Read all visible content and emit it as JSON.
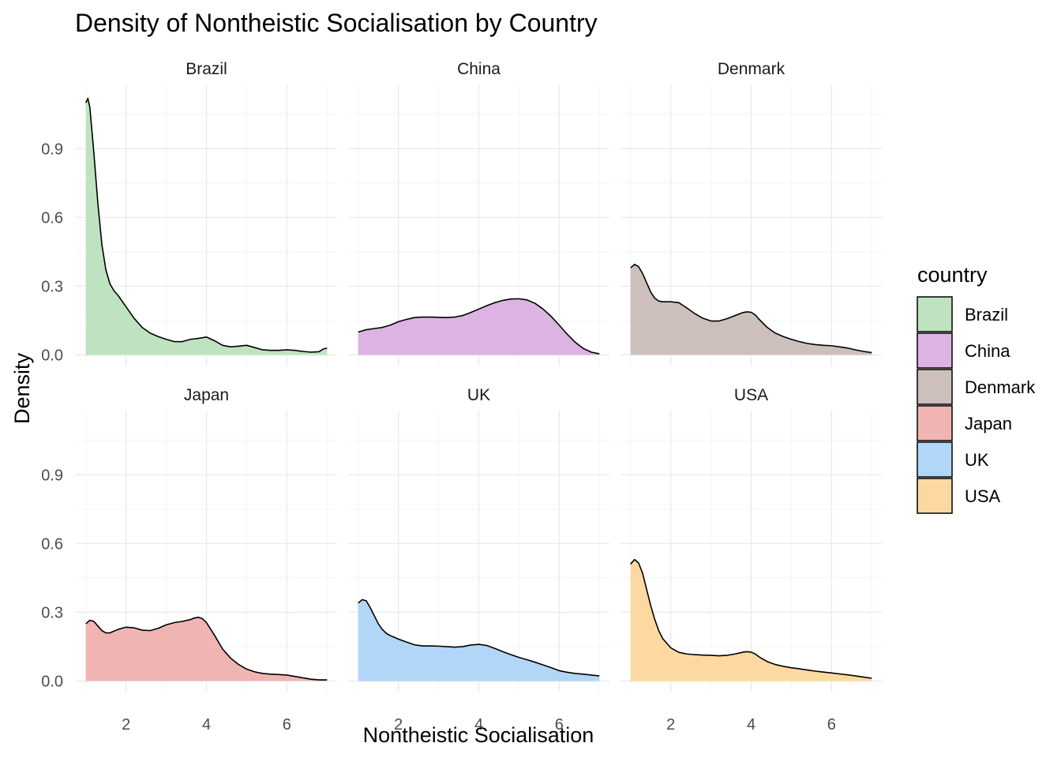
{
  "chart_data": {
    "type": "area",
    "title": "Density of Nontheistic Socialisation by Country",
    "xlabel": "Nontheistic Socialisation",
    "ylabel": "Density",
    "xlim": [
      0.75,
      7.25
    ],
    "ylim": [
      -0.05,
      1.18
    ],
    "x_ticks": [
      2,
      4,
      6
    ],
    "y_ticks": [
      0.0,
      0.3,
      0.6,
      0.9
    ],
    "y_tick_labels": [
      "0.0",
      "0.3",
      "0.6",
      "0.9"
    ],
    "grid": true,
    "facet_layout": "2 rows x 3 columns",
    "legend": {
      "title": "country",
      "position": "right"
    },
    "panels": [
      {
        "name": "Brazil",
        "color": "#bfe3c0",
        "x": [
          1.0,
          1.05,
          1.1,
          1.2,
          1.3,
          1.4,
          1.5,
          1.6,
          1.7,
          1.8,
          2.0,
          2.2,
          2.4,
          2.6,
          2.8,
          3.0,
          3.2,
          3.4,
          3.6,
          3.8,
          4.0,
          4.2,
          4.4,
          4.6,
          4.8,
          5.0,
          5.2,
          5.4,
          5.6,
          5.8,
          6.0,
          6.2,
          6.4,
          6.6,
          6.8,
          6.9,
          7.0
        ],
        "y": [
          1.1,
          1.12,
          1.08,
          0.88,
          0.66,
          0.48,
          0.37,
          0.31,
          0.28,
          0.26,
          0.21,
          0.16,
          0.12,
          0.095,
          0.08,
          0.068,
          0.058,
          0.058,
          0.068,
          0.072,
          0.078,
          0.062,
          0.042,
          0.035,
          0.038,
          0.042,
          0.032,
          0.022,
          0.02,
          0.02,
          0.022,
          0.02,
          0.015,
          0.012,
          0.014,
          0.025,
          0.03
        ]
      },
      {
        "name": "China",
        "color": "#dcb3e2",
        "x": [
          1.0,
          1.2,
          1.4,
          1.6,
          1.8,
          2.0,
          2.2,
          2.4,
          2.6,
          2.8,
          3.0,
          3.2,
          3.4,
          3.6,
          3.8,
          4.0,
          4.2,
          4.4,
          4.6,
          4.8,
          5.0,
          5.2,
          5.4,
          5.6,
          5.8,
          6.0,
          6.2,
          6.4,
          6.6,
          6.8,
          7.0
        ],
        "y": [
          0.1,
          0.11,
          0.115,
          0.12,
          0.13,
          0.145,
          0.155,
          0.163,
          0.165,
          0.165,
          0.164,
          0.163,
          0.165,
          0.172,
          0.185,
          0.2,
          0.215,
          0.228,
          0.238,
          0.244,
          0.245,
          0.24,
          0.225,
          0.2,
          0.168,
          0.13,
          0.09,
          0.055,
          0.028,
          0.012,
          0.005
        ]
      },
      {
        "name": "Denmark",
        "color": "#cdc0bc",
        "x": [
          1.0,
          1.1,
          1.2,
          1.3,
          1.4,
          1.5,
          1.6,
          1.7,
          1.8,
          2.0,
          2.2,
          2.4,
          2.6,
          2.8,
          3.0,
          3.2,
          3.4,
          3.6,
          3.8,
          3.9,
          4.0,
          4.1,
          4.2,
          4.4,
          4.6,
          4.8,
          5.0,
          5.2,
          5.4,
          5.6,
          5.8,
          6.0,
          6.2,
          6.4,
          6.6,
          6.8,
          7.0
        ],
        "y": [
          0.38,
          0.395,
          0.385,
          0.355,
          0.315,
          0.275,
          0.248,
          0.235,
          0.232,
          0.232,
          0.228,
          0.205,
          0.18,
          0.16,
          0.148,
          0.148,
          0.158,
          0.172,
          0.185,
          0.188,
          0.186,
          0.175,
          0.155,
          0.12,
          0.095,
          0.08,
          0.068,
          0.058,
          0.05,
          0.045,
          0.042,
          0.04,
          0.035,
          0.03,
          0.022,
          0.015,
          0.01
        ]
      },
      {
        "name": "Japan",
        "color": "#f0b5b3",
        "x": [
          1.0,
          1.1,
          1.2,
          1.3,
          1.4,
          1.5,
          1.6,
          1.8,
          2.0,
          2.2,
          2.4,
          2.6,
          2.8,
          3.0,
          3.2,
          3.4,
          3.6,
          3.7,
          3.8,
          3.9,
          4.0,
          4.2,
          4.4,
          4.6,
          4.8,
          5.0,
          5.2,
          5.4,
          5.6,
          5.8,
          6.0,
          6.2,
          6.4,
          6.6,
          6.8,
          7.0
        ],
        "y": [
          0.25,
          0.265,
          0.26,
          0.24,
          0.22,
          0.21,
          0.21,
          0.225,
          0.235,
          0.232,
          0.222,
          0.22,
          0.23,
          0.245,
          0.255,
          0.26,
          0.268,
          0.275,
          0.278,
          0.272,
          0.255,
          0.2,
          0.14,
          0.1,
          0.072,
          0.052,
          0.04,
          0.033,
          0.03,
          0.028,
          0.026,
          0.02,
          0.014,
          0.008,
          0.005,
          0.005
        ]
      },
      {
        "name": "UK",
        "color": "#b1d6f7",
        "x": [
          1.0,
          1.1,
          1.2,
          1.3,
          1.4,
          1.5,
          1.6,
          1.7,
          1.8,
          2.0,
          2.2,
          2.4,
          2.6,
          2.8,
          3.0,
          3.2,
          3.4,
          3.6,
          3.8,
          4.0,
          4.2,
          4.4,
          4.6,
          4.8,
          5.0,
          5.2,
          5.4,
          5.6,
          5.8,
          6.0,
          6.2,
          6.4,
          6.6,
          6.8,
          7.0
        ],
        "y": [
          0.34,
          0.355,
          0.35,
          0.32,
          0.285,
          0.25,
          0.225,
          0.208,
          0.198,
          0.183,
          0.17,
          0.158,
          0.153,
          0.153,
          0.152,
          0.15,
          0.148,
          0.15,
          0.157,
          0.16,
          0.155,
          0.142,
          0.128,
          0.115,
          0.103,
          0.093,
          0.082,
          0.07,
          0.058,
          0.045,
          0.038,
          0.033,
          0.03,
          0.026,
          0.022
        ]
      },
      {
        "name": "USA",
        "color": "#fdd9a1",
        "x": [
          1.0,
          1.1,
          1.2,
          1.3,
          1.4,
          1.5,
          1.6,
          1.7,
          1.8,
          2.0,
          2.2,
          2.4,
          2.6,
          2.8,
          3.0,
          3.2,
          3.4,
          3.6,
          3.8,
          3.9,
          4.0,
          4.1,
          4.2,
          4.4,
          4.6,
          4.8,
          5.0,
          5.2,
          5.4,
          5.6,
          5.8,
          6.0,
          6.2,
          6.4,
          6.6,
          6.8,
          7.0
        ],
        "y": [
          0.51,
          0.53,
          0.515,
          0.47,
          0.4,
          0.33,
          0.27,
          0.22,
          0.185,
          0.145,
          0.125,
          0.118,
          0.115,
          0.113,
          0.112,
          0.11,
          0.112,
          0.118,
          0.126,
          0.128,
          0.126,
          0.118,
          0.105,
          0.085,
          0.072,
          0.064,
          0.058,
          0.053,
          0.048,
          0.043,
          0.039,
          0.035,
          0.031,
          0.027,
          0.022,
          0.017,
          0.012
        ]
      }
    ]
  }
}
